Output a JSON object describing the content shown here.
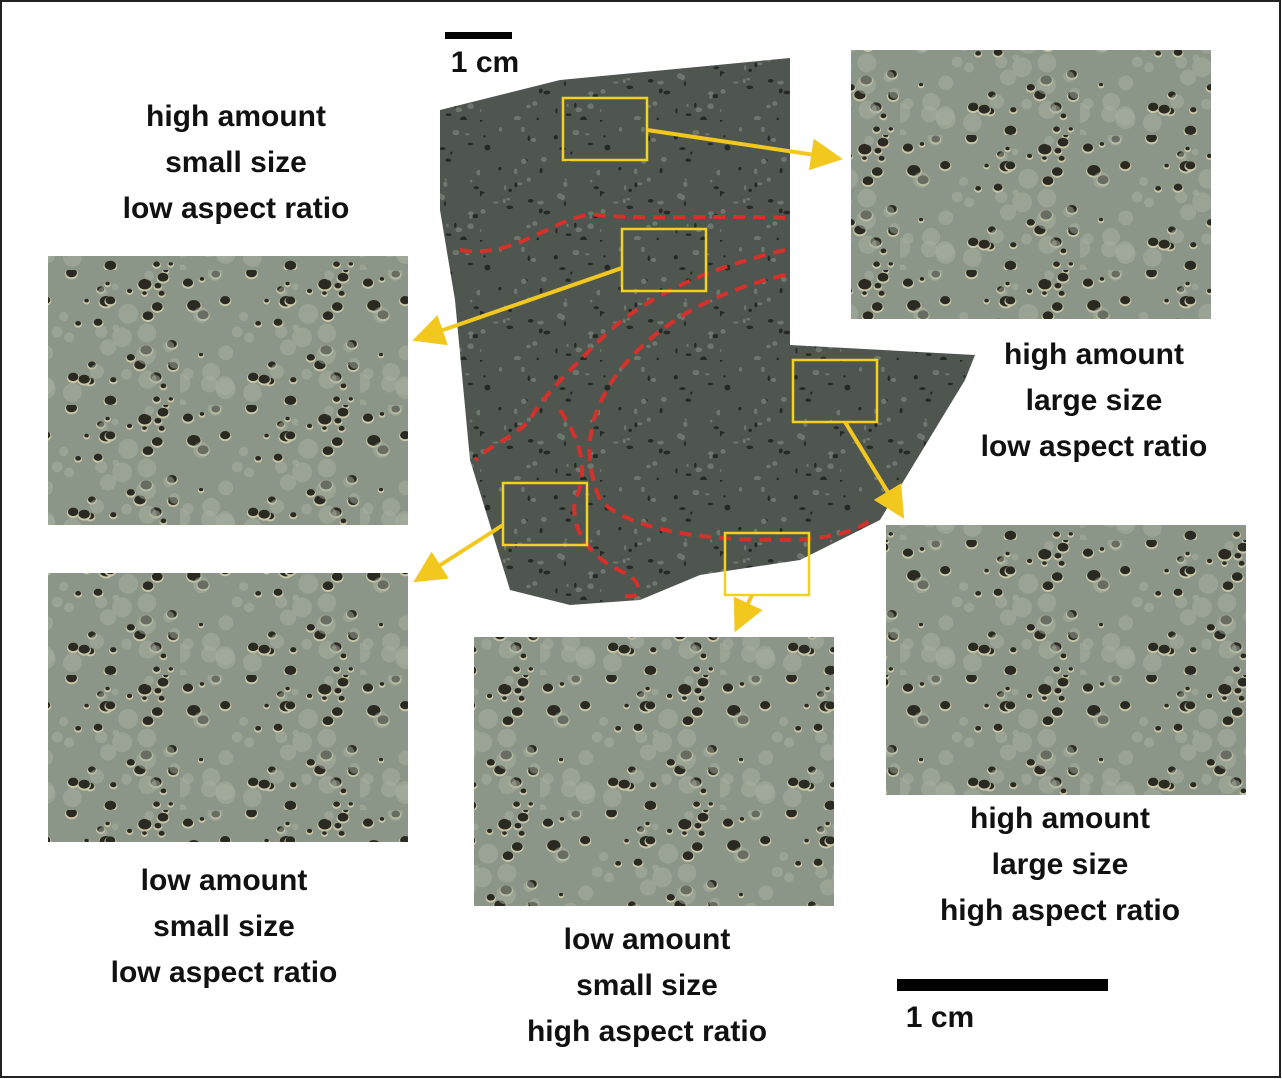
{
  "scale_bars": [
    "1 cm",
    "1 cm"
  ],
  "panels": [
    {
      "label": [
        "high amount",
        "small size",
        "low aspect ratio"
      ]
    },
    {
      "label": [
        "high amount",
        "large size",
        "low aspect ratio"
      ]
    },
    {
      "label": [
        "low amount",
        "small size",
        "low aspect ratio"
      ]
    },
    {
      "label": [
        "low amount",
        "small size",
        "high aspect ratio"
      ]
    },
    {
      "label": [
        "high amount",
        "large size",
        "high aspect ratio"
      ]
    }
  ]
}
